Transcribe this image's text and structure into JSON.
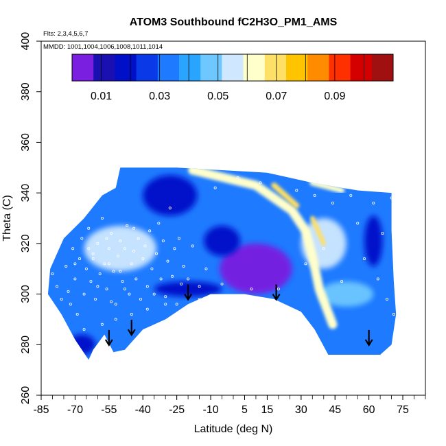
{
  "chart_data": {
    "type": "heatmap",
    "title": "ATOM3 Southbound fC2H3O_PM1_AMS",
    "subtitle_flights": "Flts: 2,3,4,5,6,7",
    "subtitle_dates": "MMDD: 1001,1004,1006,1008,1011,1014",
    "xlabel": "Latitude (deg N)",
    "ylabel": "Theta (C)",
    "xlim": [
      -85,
      85
    ],
    "ylim": [
      260,
      400
    ],
    "x_tick_labels": [
      "-85",
      "-70",
      "-55",
      "-40",
      "-25",
      "-10",
      "5",
      "15",
      "30",
      "45",
      "60",
      "75"
    ],
    "y_tick_labels": [
      "260",
      "280",
      "300",
      "320",
      "340",
      "360",
      "380",
      "400"
    ],
    "colorbar": {
      "range": [
        0.0,
        0.11
      ],
      "tick_labels": [
        "0.01",
        "0.03",
        "0.05",
        "0.07",
        "0.09"
      ],
      "colors": [
        "#7a1fe0",
        "#1a0fb0",
        "#0010c8",
        "#0a3ae8",
        "#1e7aff",
        "#2aa5ff",
        "#6ec8ff",
        "#cfe8ff",
        "#ffffcc",
        "#ffe066",
        "#ffc400",
        "#ff8c00",
        "#ff3000",
        "#d40000",
        "#a01010"
      ]
    },
    "arrows": [
      {
        "lat": -55,
        "theta": 282
      },
      {
        "lat": -45,
        "theta": 286
      },
      {
        "lat": -20,
        "theta": 300
      },
      {
        "lat": 19,
        "theta": 300
      },
      {
        "lat": 60,
        "theta": 282
      }
    ],
    "curtain_outline": [
      [
        -82,
        300
      ],
      [
        -81,
        310
      ],
      [
        -75,
        322
      ],
      [
        -66,
        330
      ],
      [
        -58,
        339
      ],
      [
        -52,
        342
      ],
      [
        -50,
        350
      ],
      [
        -25,
        350
      ],
      [
        -5,
        349
      ],
      [
        15,
        348
      ],
      [
        35,
        344
      ],
      [
        55,
        341
      ],
      [
        70,
        340
      ],
      [
        70,
        325
      ],
      [
        71,
        305
      ],
      [
        72,
        292
      ],
      [
        70,
        280
      ],
      [
        65,
        276
      ],
      [
        55,
        276
      ],
      [
        42,
        276
      ],
      [
        36,
        286
      ],
      [
        30,
        293
      ],
      [
        18,
        298
      ],
      [
        5,
        300
      ],
      [
        -10,
        300
      ],
      [
        -20,
        296
      ],
      [
        -30,
        290
      ],
      [
        -40,
        286
      ],
      [
        -48,
        278
      ],
      [
        -53,
        277
      ],
      [
        -57,
        284
      ],
      [
        -62,
        278
      ],
      [
        -64,
        274
      ],
      [
        -70,
        282
      ],
      [
        -76,
        292
      ]
    ],
    "features": [
      {
        "shape": "ellipse",
        "lat": 10,
        "theta": 310,
        "rlat": 16,
        "rtheta": 10,
        "value": 0.003
      },
      {
        "shape": "ellipse",
        "lat": -28,
        "theta": 339,
        "rlat": 12,
        "rtheta": 8,
        "value": 0.02
      },
      {
        "shape": "ellipse",
        "lat": -5,
        "theta": 321,
        "rlat": 8,
        "rtheta": 6,
        "value": 0.02
      },
      {
        "shape": "ellipse",
        "lat": -20,
        "theta": 302,
        "rlat": 15,
        "rtheta": 3,
        "value": 0.018
      },
      {
        "shape": "ellipse",
        "lat": 62,
        "theta": 321,
        "rlat": 4,
        "rtheta": 10,
        "value": 0.02
      },
      {
        "shape": "ellipse",
        "lat": -67,
        "theta": 280,
        "rlat": 6,
        "rtheta": 4,
        "value": 0.015
      },
      {
        "shape": "ellipse",
        "lat": -50,
        "theta": 318,
        "rlat": 16,
        "rtheta": 9,
        "value": 0.055
      },
      {
        "shape": "ellipse",
        "lat": 40,
        "theta": 320,
        "rlat": 10,
        "rtheta": 10,
        "value": 0.055
      },
      {
        "shape": "ellipse",
        "lat": 50,
        "theta": 300,
        "rlat": 12,
        "rtheta": 5,
        "value": 0.05
      },
      {
        "shape": "band",
        "points": [
          [
            -18,
            349
          ],
          [
            10,
            343
          ],
          [
            26,
            333
          ],
          [
            32,
            325
          ],
          [
            35,
            315
          ],
          [
            38,
            302
          ],
          [
            44,
            288
          ]
        ],
        "width": 4,
        "value": 0.063
      },
      {
        "shape": "band",
        "points": [
          [
            -20,
            349
          ],
          [
            -14,
            349
          ]
        ],
        "width": 3,
        "value": 0.09
      },
      {
        "shape": "band",
        "points": [
          [
            18,
            343
          ],
          [
            28,
            335
          ]
        ],
        "width": 2.5,
        "value": 0.072
      },
      {
        "shape": "band",
        "points": [
          [
            35,
            330
          ],
          [
            40,
            320
          ]
        ],
        "width": 2,
        "value": 0.068
      },
      {
        "shape": "band",
        "points": [
          [
            35,
            344
          ],
          [
            48,
            341
          ]
        ],
        "width": 2.5,
        "value": 0.06
      }
    ],
    "sample_points": [
      [
        -80,
        308
      ],
      [
        -78,
        303
      ],
      [
        -74,
        311
      ],
      [
        -73,
        301
      ],
      [
        -72,
        296
      ],
      [
        -71,
        318
      ],
      [
        -70,
        306
      ],
      [
        -69,
        292
      ],
      [
        -68,
        314
      ],
      [
        -67,
        322
      ],
      [
        -66,
        300
      ],
      [
        -65,
        310
      ],
      [
        -64,
        326
      ],
      [
        -63,
        305
      ],
      [
        -62,
        316
      ],
      [
        -61,
        298
      ],
      [
        -60,
        320
      ],
      [
        -59,
        308
      ],
      [
        -58,
        330
      ],
      [
        -57,
        312
      ],
      [
        -56,
        302
      ],
      [
        -55,
        318
      ],
      [
        -54,
        324
      ],
      [
        -53,
        309
      ],
      [
        -52,
        296
      ],
      [
        -51,
        315
      ],
      [
        -50,
        321
      ],
      [
        -49,
        305
      ],
      [
        -48,
        318
      ],
      [
        -47,
        327
      ],
      [
        -46,
        300
      ],
      [
        -45,
        312
      ],
      [
        -44,
        317
      ],
      [
        -43,
        306
      ],
      [
        -42,
        322
      ],
      [
        -41,
        298
      ],
      [
        -40,
        314
      ],
      [
        -39,
        319
      ],
      [
        -38,
        303
      ],
      [
        -37,
        325
      ],
      [
        -36,
        310
      ],
      [
        -35,
        300
      ],
      [
        -34,
        316
      ],
      [
        -33,
        328
      ],
      [
        -32,
        306
      ],
      [
        -31,
        321
      ],
      [
        -30,
        299
      ],
      [
        -29,
        313
      ],
      [
        -28,
        334
      ],
      [
        -27,
        307
      ],
      [
        -26,
        318
      ],
      [
        -25,
        296
      ],
      [
        -24,
        322
      ],
      [
        -23,
        304
      ],
      [
        -22,
        311
      ],
      [
        -20,
        306
      ],
      [
        -18,
        319
      ],
      [
        -15,
        303
      ],
      [
        -12,
        310
      ],
      [
        -8,
        342
      ],
      [
        -5,
        304
      ],
      [
        2,
        346
      ],
      [
        8,
        302
      ],
      [
        12,
        344
      ],
      [
        20,
        302
      ],
      [
        28,
        341
      ],
      [
        32,
        312
      ],
      [
        36,
        339
      ],
      [
        40,
        318
      ],
      [
        44,
        336
      ],
      [
        48,
        305
      ],
      [
        52,
        339
      ],
      [
        55,
        328
      ],
      [
        58,
        314
      ],
      [
        62,
        336
      ],
      [
        64,
        306
      ],
      [
        66,
        324
      ],
      [
        68,
        298
      ],
      [
        70,
        338
      ],
      [
        71,
        292
      ],
      [
        -76,
        298
      ],
      [
        -66,
        286
      ],
      [
        -58,
        288
      ],
      [
        -52,
        290
      ],
      [
        -45,
        292
      ],
      [
        -38,
        294
      ],
      [
        -30,
        296
      ],
      [
        -15,
        298
      ],
      [
        -62,
        314
      ],
      [
        -56,
        322
      ],
      [
        -44,
        326
      ],
      [
        -64,
        318
      ],
      [
        -55,
        312
      ],
      [
        -50,
        309
      ],
      [
        -48,
        302
      ],
      [
        -60,
        303
      ],
      [
        -54,
        297
      ],
      [
        -70,
        312
      ]
    ]
  }
}
